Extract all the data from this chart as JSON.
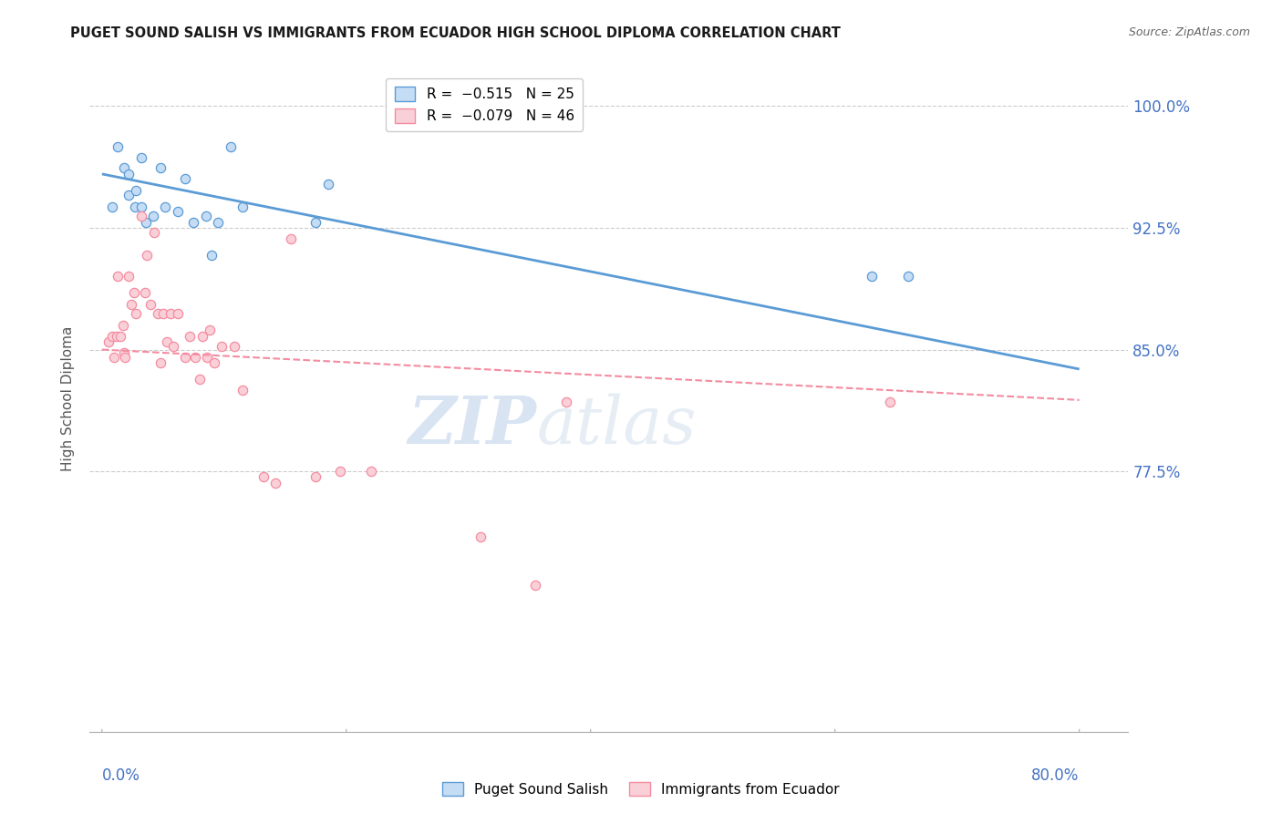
{
  "title": "PUGET SOUND SALISH VS IMMIGRANTS FROM ECUADOR HIGH SCHOOL DIPLOMA CORRELATION CHART",
  "source": "Source: ZipAtlas.com",
  "ylabel": "High School Diploma",
  "ymin": 0.615,
  "ymax": 1.025,
  "xmin": -0.01,
  "xmax": 0.84,
  "ytick_positions": [
    0.775,
    0.85,
    0.925,
    1.0
  ],
  "ytick_labels": [
    "77.5%",
    "85.0%",
    "92.5%",
    "100.0%"
  ],
  "legend_entries": [
    {
      "label": "R =  −0.515   N = 25",
      "color": "#a8c8f0"
    },
    {
      "label": "R =  −0.079   N = 46",
      "color": "#f4a0b0"
    }
  ],
  "legend_labels": [
    "Puget Sound Salish",
    "Immigrants from Ecuador"
  ],
  "blue_scatter_x": [
    0.008,
    0.013,
    0.018,
    0.022,
    0.022,
    0.027,
    0.028,
    0.032,
    0.032,
    0.036,
    0.042,
    0.048,
    0.052,
    0.062,
    0.068,
    0.075,
    0.085,
    0.09,
    0.095,
    0.105,
    0.115,
    0.175,
    0.185,
    0.63,
    0.66
  ],
  "blue_scatter_y": [
    0.938,
    0.975,
    0.962,
    0.945,
    0.958,
    0.938,
    0.948,
    0.968,
    0.938,
    0.928,
    0.932,
    0.962,
    0.938,
    0.935,
    0.955,
    0.928,
    0.932,
    0.908,
    0.928,
    0.975,
    0.938,
    0.928,
    0.952,
    0.895,
    0.895
  ],
  "blue_line_x": [
    0.0,
    0.8
  ],
  "blue_line_y": [
    0.958,
    0.838
  ],
  "pink_scatter_x": [
    0.005,
    0.008,
    0.01,
    0.012,
    0.013,
    0.015,
    0.017,
    0.018,
    0.019,
    0.022,
    0.024,
    0.026,
    0.028,
    0.032,
    0.035,
    0.037,
    0.04,
    0.043,
    0.046,
    0.048,
    0.05,
    0.053,
    0.056,
    0.058,
    0.062,
    0.068,
    0.072,
    0.076,
    0.08,
    0.082,
    0.086,
    0.088,
    0.092,
    0.098,
    0.108,
    0.115,
    0.132,
    0.142,
    0.155,
    0.175,
    0.195,
    0.22,
    0.31,
    0.355,
    0.38,
    0.645
  ],
  "pink_scatter_y": [
    0.855,
    0.858,
    0.845,
    0.858,
    0.895,
    0.858,
    0.865,
    0.848,
    0.845,
    0.895,
    0.878,
    0.885,
    0.872,
    0.932,
    0.885,
    0.908,
    0.878,
    0.922,
    0.872,
    0.842,
    0.872,
    0.855,
    0.872,
    0.852,
    0.872,
    0.845,
    0.858,
    0.845,
    0.832,
    0.858,
    0.845,
    0.862,
    0.842,
    0.852,
    0.852,
    0.825,
    0.772,
    0.768,
    0.918,
    0.772,
    0.775,
    0.775,
    0.735,
    0.705,
    0.818,
    0.818
  ],
  "pink_line_x": [
    0.0,
    0.8
  ],
  "pink_line_y": [
    0.85,
    0.819
  ],
  "watermark_top": "ZIP",
  "watermark_bottom": "atlas",
  "title_color": "#1a1a1a",
  "source_color": "#666666",
  "tick_label_color": "#4472c4",
  "blue_color": "#5b9bd5",
  "pink_color": "#f48ca0",
  "blue_fill": "#c5ddf4",
  "pink_fill": "#fad0d8",
  "grid_color": "#cccccc",
  "grid_style": "--"
}
